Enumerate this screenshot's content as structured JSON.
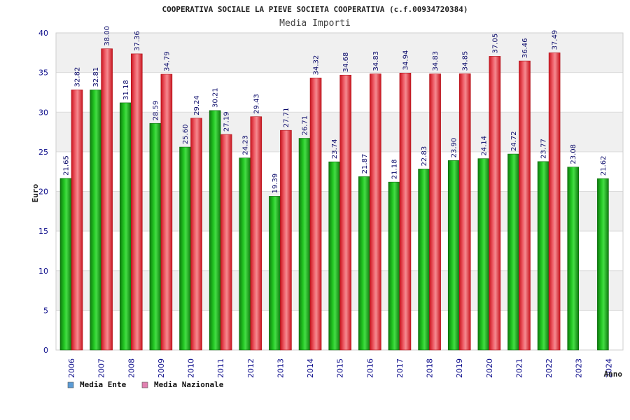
{
  "chart_data": {
    "type": "bar",
    "title": "COOPERATIVA SOCIALE LA PIEVE SOCIETA COOPERATIVA (c.f.00934720384)",
    "subtitle": "Media Importi",
    "xlabel": "Anno",
    "ylabel": "Euro",
    "ylim": [
      0,
      40
    ],
    "yticks": [
      0,
      5,
      10,
      15,
      20,
      25,
      30,
      35,
      40
    ],
    "categories": [
      "2006",
      "2007",
      "2008",
      "2009",
      "2010",
      "2011",
      "2012",
      "2013",
      "2014",
      "2015",
      "2016",
      "2017",
      "2018",
      "2019",
      "2020",
      "2021",
      "2022",
      "2023",
      "2024"
    ],
    "series": [
      {
        "name": "Media Ente",
        "color": "#22aa22",
        "legend_color": "#5b9bd5",
        "values": [
          21.65,
          32.81,
          31.18,
          28.59,
          25.6,
          30.21,
          24.23,
          19.39,
          26.71,
          23.74,
          21.87,
          21.18,
          22.83,
          23.9,
          24.14,
          24.72,
          23.77,
          23.08,
          21.62
        ],
        "labels": [
          "21.65",
          "32.81",
          "31.18",
          "28.59",
          "25.60",
          "30.21",
          "24.23",
          "19.39",
          "26.71",
          "23.74",
          "21.87",
          "21.18",
          "22.83",
          "23.90",
          "24.14",
          "24.72",
          "23.77",
          "23.08",
          "21.62"
        ]
      },
      {
        "name": "Media Nazionale",
        "color": "#e8323c",
        "legend_color": "#e080b0",
        "values": [
          32.82,
          38.0,
          37.36,
          34.79,
          29.24,
          27.19,
          29.43,
          27.71,
          34.32,
          34.68,
          34.83,
          34.94,
          34.83,
          34.85,
          37.05,
          36.46,
          37.49,
          null,
          null
        ],
        "labels": [
          "32.82",
          "38.00",
          "37.36",
          "34.79",
          "29.24",
          "27.19",
          "29.43",
          "27.71",
          "34.32",
          "34.68",
          "34.83",
          "34.94",
          "34.83",
          "34.85",
          "37.05",
          "36.46",
          "37.49",
          null,
          null
        ]
      }
    ],
    "legend_position": "bottom-left",
    "grid": true
  }
}
